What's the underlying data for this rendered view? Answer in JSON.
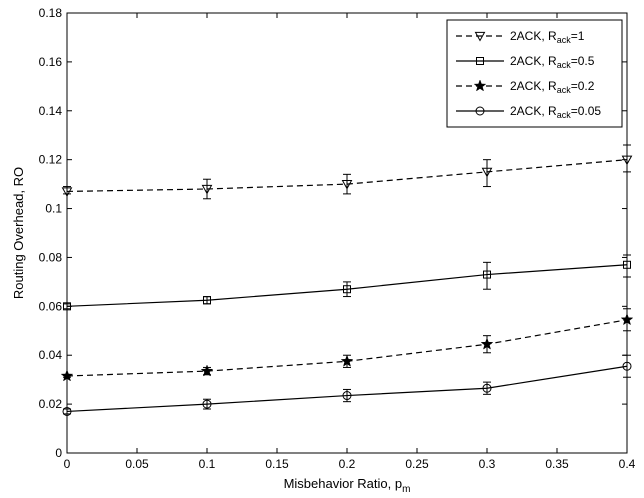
{
  "chart_data": {
    "type": "line",
    "title": "",
    "xlabel": "Misbehavior Ratio, p",
    "xlabel_sub": "m",
    "ylabel": "Routing Overhead, RO",
    "xlim": [
      0,
      0.4
    ],
    "ylim": [
      0,
      0.18
    ],
    "x_ticks": [
      0,
      0.05,
      0.1,
      0.15,
      0.2,
      0.25,
      0.3,
      0.35,
      0.4
    ],
    "x_tick_labels": [
      "0",
      "0.05",
      "0.1",
      "0.15",
      "0.2",
      "0.25",
      "0.3",
      "0.35",
      "0.4"
    ],
    "y_ticks": [
      0,
      0.02,
      0.04,
      0.06,
      0.08,
      0.1,
      0.12,
      0.14,
      0.16,
      0.18
    ],
    "y_tick_labels": [
      "0",
      "0.02",
      "0.04",
      "0.06",
      "0.08",
      "0.1",
      "0.12",
      "0.14",
      "0.16",
      "0.18"
    ],
    "grid": false,
    "legend_position": "top-right",
    "x": [
      0,
      0.1,
      0.2,
      0.3,
      0.4
    ],
    "series": [
      {
        "name": "2ACK, R",
        "name_sub": "ack",
        "name_suffix": "=1",
        "marker": "triangle-down",
        "dash": "dashed",
        "values": [
          0.107,
          0.108,
          0.11,
          0.115,
          0.12
        ],
        "err_low": [
          0.106,
          0.104,
          0.106,
          0.109,
          0.115
        ],
        "err_high": [
          0.109,
          0.112,
          0.114,
          0.12,
          0.126
        ]
      },
      {
        "name": "2ACK, R",
        "name_sub": "ack",
        "name_suffix": "=0.5",
        "marker": "square",
        "dash": "solid",
        "values": [
          0.06,
          0.0625,
          0.067,
          0.073,
          0.077
        ],
        "err_low": [
          0.059,
          0.061,
          0.064,
          0.067,
          0.072
        ],
        "err_high": [
          0.061,
          0.064,
          0.07,
          0.078,
          0.081
        ]
      },
      {
        "name": "2ACK, R",
        "name_sub": "ack",
        "name_suffix": "=0.2",
        "marker": "star",
        "dash": "dashed",
        "values": [
          0.0315,
          0.0335,
          0.0375,
          0.0445,
          0.0545
        ],
        "err_low": [
          0.031,
          0.032,
          0.035,
          0.041,
          0.05
        ],
        "err_high": [
          0.032,
          0.035,
          0.04,
          0.048,
          0.059
        ]
      },
      {
        "name": "2ACK, R",
        "name_sub": "ack",
        "name_suffix": "=0.05",
        "marker": "circle",
        "dash": "solid",
        "values": [
          0.017,
          0.02,
          0.0235,
          0.0265,
          0.0355
        ],
        "err_low": [
          0.016,
          0.018,
          0.021,
          0.024,
          0.031
        ],
        "err_high": [
          0.018,
          0.022,
          0.026,
          0.029,
          0.04
        ]
      }
    ]
  }
}
